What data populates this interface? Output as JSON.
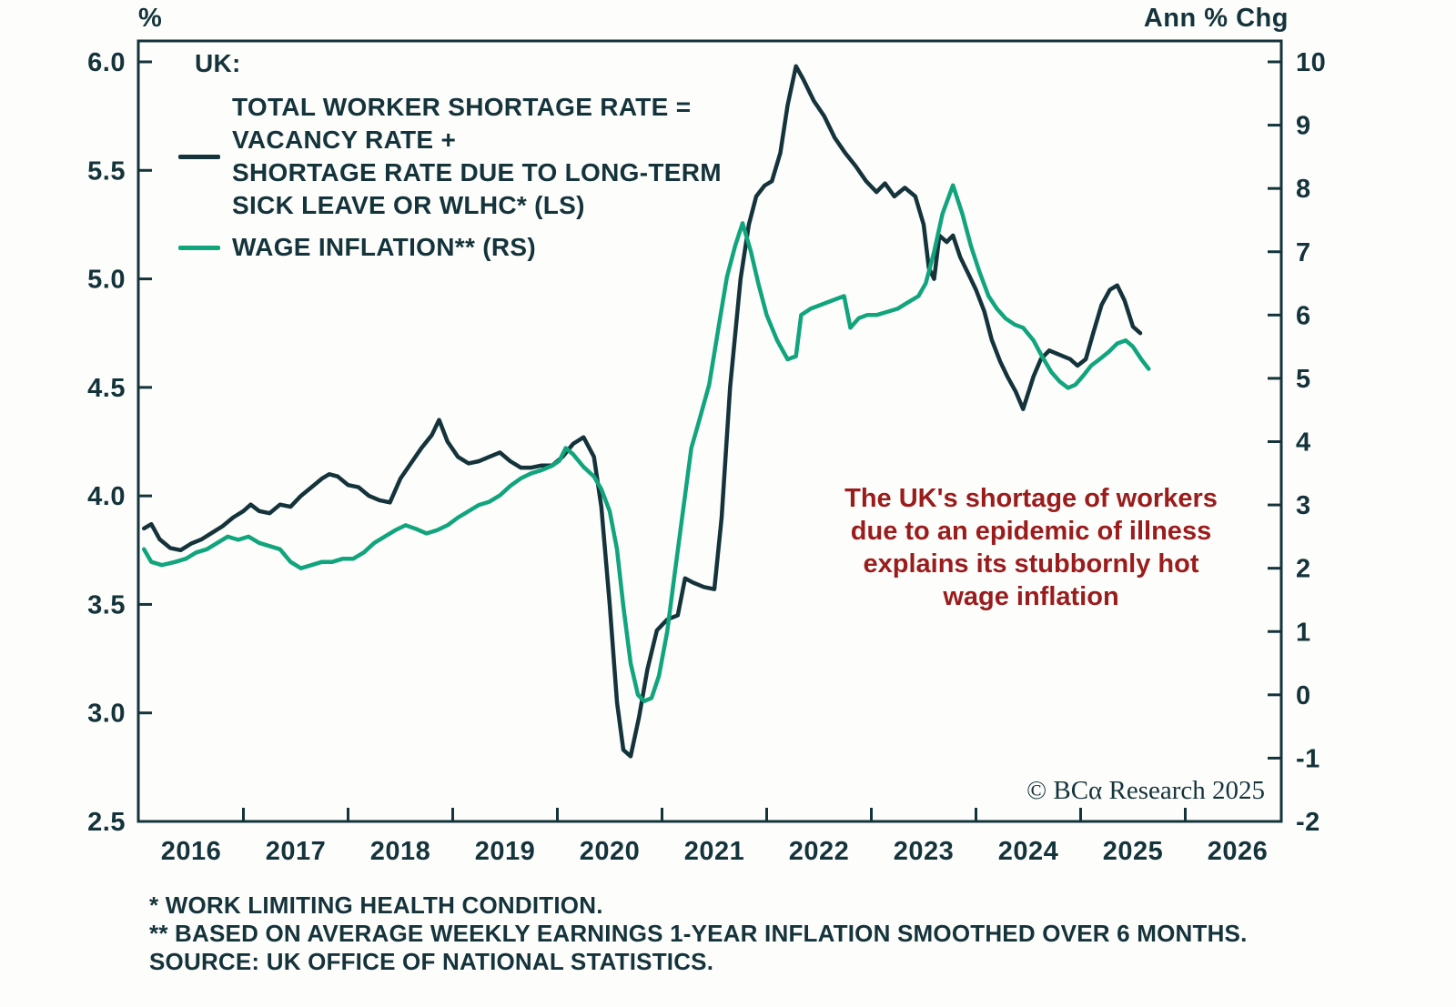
{
  "colors": {
    "navy": "#14333b",
    "green": "#11a57d",
    "red": "#9a1c1c",
    "background": "#fdfdfb"
  },
  "axes": {
    "left_unit": "%",
    "right_unit": "Ann % Chg"
  },
  "legend": {
    "heading": "UK:",
    "items": [
      {
        "id": "shortage",
        "color": "#14333b",
        "lines": [
          "TOTAL WORKER SHORTAGE RATE =",
          "VACANCY RATE +",
          "SHORTAGE RATE DUE TO LONG-TERM",
          "SICK LEAVE OR WLHC* (LS)"
        ]
      },
      {
        "id": "wage-inflation",
        "color": "#11a57d",
        "lines": [
          "WAGE INFLATION** (RS)"
        ]
      }
    ]
  },
  "annotation": {
    "lines": [
      "The UK's shortage of workers",
      "due to an epidemic of illness",
      "explains its stubbornly hot",
      "wage inflation"
    ]
  },
  "copyright": "© BCα Research 2025",
  "footnotes": [
    "* WORK LIMITING HEALTH CONDITION.",
    "** BASED ON AVERAGE WEEKLY EARNINGS 1-YEAR INFLATION SMOOTHED OVER 6 MONTHS.",
    "SOURCE: UK OFFICE OF NATIONAL STATISTICS."
  ],
  "chart_data": {
    "type": "line",
    "title": "",
    "xlim": [
      2015.5,
      2026.42
    ],
    "x_year_labels": [
      2016,
      2017,
      2018,
      2019,
      2020,
      2021,
      2022,
      2023,
      2024,
      2025,
      2026
    ],
    "x_boundary_ticks": [
      2016.5,
      2017.5,
      2018.5,
      2019.5,
      2020.5,
      2021.5,
      2022.5,
      2023.5,
      2024.5,
      2025.5
    ],
    "left_axis": {
      "label": "%",
      "range": [
        2.5,
        6.0
      ],
      "ticks": [
        6.0,
        5.5,
        5.0,
        4.5,
        4.0,
        3.5,
        3.0,
        2.5
      ]
    },
    "right_axis": {
      "label": "Ann % Chg",
      "range": [
        -2,
        10
      ],
      "ticks": [
        10,
        9,
        8,
        7,
        6,
        5,
        4,
        3,
        2,
        1,
        0,
        -1,
        -2
      ]
    },
    "grid": false,
    "legend_position": "top-left",
    "series": [
      {
        "id": "total-worker-shortage-rate",
        "name": "TOTAL WORKER SHORTAGE RATE = VACANCY RATE + SHORTAGE RATE DUE TO LONG-TERM SICK LEAVE OR WLHC (LS)",
        "axis": "left",
        "color": "#14333b",
        "points": [
          [
            2015.55,
            3.85
          ],
          [
            2015.62,
            3.87
          ],
          [
            2015.7,
            3.8
          ],
          [
            2015.8,
            3.76
          ],
          [
            2015.9,
            3.75
          ],
          [
            2016.0,
            3.78
          ],
          [
            2016.1,
            3.8
          ],
          [
            2016.2,
            3.83
          ],
          [
            2016.3,
            3.86
          ],
          [
            2016.4,
            3.9
          ],
          [
            2016.5,
            3.93
          ],
          [
            2016.57,
            3.96
          ],
          [
            2016.65,
            3.93
          ],
          [
            2016.75,
            3.92
          ],
          [
            2016.85,
            3.96
          ],
          [
            2016.95,
            3.95
          ],
          [
            2017.05,
            4.0
          ],
          [
            2017.15,
            4.04
          ],
          [
            2017.25,
            4.08
          ],
          [
            2017.32,
            4.1
          ],
          [
            2017.4,
            4.09
          ],
          [
            2017.5,
            4.05
          ],
          [
            2017.6,
            4.04
          ],
          [
            2017.7,
            4.0
          ],
          [
            2017.8,
            3.98
          ],
          [
            2017.9,
            3.97
          ],
          [
            2018.0,
            4.08
          ],
          [
            2018.1,
            4.15
          ],
          [
            2018.2,
            4.22
          ],
          [
            2018.3,
            4.28
          ],
          [
            2018.37,
            4.35
          ],
          [
            2018.45,
            4.25
          ],
          [
            2018.55,
            4.18
          ],
          [
            2018.65,
            4.15
          ],
          [
            2018.75,
            4.16
          ],
          [
            2018.85,
            4.18
          ],
          [
            2018.95,
            4.2
          ],
          [
            2019.05,
            4.16
          ],
          [
            2019.15,
            4.13
          ],
          [
            2019.25,
            4.13
          ],
          [
            2019.35,
            4.14
          ],
          [
            2019.45,
            4.14
          ],
          [
            2019.55,
            4.18
          ],
          [
            2019.65,
            4.24
          ],
          [
            2019.75,
            4.27
          ],
          [
            2019.85,
            4.18
          ],
          [
            2019.92,
            3.95
          ],
          [
            2020.0,
            3.5
          ],
          [
            2020.07,
            3.05
          ],
          [
            2020.13,
            2.83
          ],
          [
            2020.2,
            2.8
          ],
          [
            2020.28,
            2.98
          ],
          [
            2020.36,
            3.2
          ],
          [
            2020.45,
            3.38
          ],
          [
            2020.55,
            3.43
          ],
          [
            2020.65,
            3.45
          ],
          [
            2020.72,
            3.62
          ],
          [
            2020.8,
            3.6
          ],
          [
            2020.9,
            3.58
          ],
          [
            2021.0,
            3.57
          ],
          [
            2021.07,
            3.9
          ],
          [
            2021.15,
            4.5
          ],
          [
            2021.25,
            5.0
          ],
          [
            2021.33,
            5.25
          ],
          [
            2021.4,
            5.38
          ],
          [
            2021.48,
            5.43
          ],
          [
            2021.55,
            5.45
          ],
          [
            2021.63,
            5.58
          ],
          [
            2021.7,
            5.8
          ],
          [
            2021.78,
            5.98
          ],
          [
            2021.85,
            5.92
          ],
          [
            2021.95,
            5.82
          ],
          [
            2022.05,
            5.75
          ],
          [
            2022.15,
            5.65
          ],
          [
            2022.25,
            5.58
          ],
          [
            2022.35,
            5.52
          ],
          [
            2022.45,
            5.45
          ],
          [
            2022.55,
            5.4
          ],
          [
            2022.63,
            5.44
          ],
          [
            2022.72,
            5.38
          ],
          [
            2022.82,
            5.42
          ],
          [
            2022.92,
            5.38
          ],
          [
            2023.0,
            5.25
          ],
          [
            2023.05,
            5.05
          ],
          [
            2023.1,
            5.0
          ],
          [
            2023.15,
            5.2
          ],
          [
            2023.22,
            5.17
          ],
          [
            2023.28,
            5.2
          ],
          [
            2023.35,
            5.1
          ],
          [
            2023.43,
            5.02
          ],
          [
            2023.5,
            4.95
          ],
          [
            2023.58,
            4.85
          ],
          [
            2023.65,
            4.72
          ],
          [
            2023.73,
            4.62
          ],
          [
            2023.8,
            4.55
          ],
          [
            2023.88,
            4.48
          ],
          [
            2023.95,
            4.4
          ],
          [
            2024.05,
            4.55
          ],
          [
            2024.12,
            4.63
          ],
          [
            2024.2,
            4.67
          ],
          [
            2024.3,
            4.65
          ],
          [
            2024.4,
            4.63
          ],
          [
            2024.47,
            4.6
          ],
          [
            2024.55,
            4.63
          ],
          [
            2024.62,
            4.75
          ],
          [
            2024.7,
            4.88
          ],
          [
            2024.78,
            4.95
          ],
          [
            2024.85,
            4.97
          ],
          [
            2024.92,
            4.9
          ],
          [
            2025.0,
            4.78
          ],
          [
            2025.07,
            4.75
          ]
        ]
      },
      {
        "id": "wage-inflation",
        "name": "WAGE INFLATION (RS)",
        "axis": "right",
        "color": "#11a57d",
        "points": [
          [
            2015.55,
            2.3
          ],
          [
            2015.62,
            2.1
          ],
          [
            2015.72,
            2.05
          ],
          [
            2015.85,
            2.1
          ],
          [
            2015.95,
            2.15
          ],
          [
            2016.05,
            2.25
          ],
          [
            2016.15,
            2.3
          ],
          [
            2016.25,
            2.4
          ],
          [
            2016.35,
            2.5
          ],
          [
            2016.45,
            2.45
          ],
          [
            2016.55,
            2.5
          ],
          [
            2016.65,
            2.4
          ],
          [
            2016.75,
            2.35
          ],
          [
            2016.85,
            2.3
          ],
          [
            2016.95,
            2.1
          ],
          [
            2017.05,
            2.0
          ],
          [
            2017.15,
            2.05
          ],
          [
            2017.25,
            2.1
          ],
          [
            2017.35,
            2.1
          ],
          [
            2017.45,
            2.15
          ],
          [
            2017.55,
            2.15
          ],
          [
            2017.65,
            2.25
          ],
          [
            2017.75,
            2.4
          ],
          [
            2017.85,
            2.5
          ],
          [
            2017.95,
            2.6
          ],
          [
            2018.05,
            2.68
          ],
          [
            2018.15,
            2.62
          ],
          [
            2018.25,
            2.55
          ],
          [
            2018.35,
            2.6
          ],
          [
            2018.45,
            2.68
          ],
          [
            2018.55,
            2.8
          ],
          [
            2018.65,
            2.9
          ],
          [
            2018.75,
            3.0
          ],
          [
            2018.85,
            3.05
          ],
          [
            2018.95,
            3.15
          ],
          [
            2019.05,
            3.3
          ],
          [
            2019.15,
            3.42
          ],
          [
            2019.25,
            3.5
          ],
          [
            2019.35,
            3.55
          ],
          [
            2019.45,
            3.62
          ],
          [
            2019.52,
            3.7
          ],
          [
            2019.58,
            3.9
          ],
          [
            2019.65,
            3.8
          ],
          [
            2019.75,
            3.6
          ],
          [
            2019.85,
            3.45
          ],
          [
            2019.92,
            3.25
          ],
          [
            2020.0,
            2.9
          ],
          [
            2020.07,
            2.3
          ],
          [
            2020.13,
            1.4
          ],
          [
            2020.2,
            0.5
          ],
          [
            2020.27,
            0.0
          ],
          [
            2020.33,
            -0.1
          ],
          [
            2020.4,
            -0.05
          ],
          [
            2020.47,
            0.3
          ],
          [
            2020.55,
            1.0
          ],
          [
            2020.62,
            1.9
          ],
          [
            2020.7,
            2.9
          ],
          [
            2020.78,
            3.9
          ],
          [
            2020.85,
            4.3
          ],
          [
            2020.95,
            4.9
          ],
          [
            2021.05,
            5.9
          ],
          [
            2021.12,
            6.6
          ],
          [
            2021.2,
            7.1
          ],
          [
            2021.27,
            7.45
          ],
          [
            2021.35,
            7.0
          ],
          [
            2021.42,
            6.5
          ],
          [
            2021.5,
            6.0
          ],
          [
            2021.6,
            5.6
          ],
          [
            2021.7,
            5.3
          ],
          [
            2021.78,
            5.35
          ],
          [
            2021.83,
            6.0
          ],
          [
            2021.92,
            6.1
          ],
          [
            2022.0,
            6.15
          ],
          [
            2022.08,
            6.2
          ],
          [
            2022.16,
            6.25
          ],
          [
            2022.24,
            6.3
          ],
          [
            2022.3,
            5.8
          ],
          [
            2022.38,
            5.95
          ],
          [
            2022.46,
            6.0
          ],
          [
            2022.55,
            6.0
          ],
          [
            2022.65,
            6.05
          ],
          [
            2022.75,
            6.1
          ],
          [
            2022.85,
            6.2
          ],
          [
            2022.95,
            6.3
          ],
          [
            2023.02,
            6.5
          ],
          [
            2023.1,
            7.0
          ],
          [
            2023.18,
            7.6
          ],
          [
            2023.28,
            8.05
          ],
          [
            2023.37,
            7.6
          ],
          [
            2023.45,
            7.1
          ],
          [
            2023.53,
            6.7
          ],
          [
            2023.62,
            6.3
          ],
          [
            2023.7,
            6.1
          ],
          [
            2023.78,
            5.95
          ],
          [
            2023.87,
            5.85
          ],
          [
            2023.95,
            5.8
          ],
          [
            2024.05,
            5.6
          ],
          [
            2024.13,
            5.35
          ],
          [
            2024.22,
            5.1
          ],
          [
            2024.3,
            4.95
          ],
          [
            2024.38,
            4.85
          ],
          [
            2024.45,
            4.9
          ],
          [
            2024.53,
            5.05
          ],
          [
            2024.6,
            5.2
          ],
          [
            2024.68,
            5.3
          ],
          [
            2024.77,
            5.42
          ],
          [
            2024.85,
            5.55
          ],
          [
            2024.93,
            5.6
          ],
          [
            2025.0,
            5.5
          ],
          [
            2025.08,
            5.3
          ],
          [
            2025.15,
            5.15
          ]
        ]
      }
    ]
  }
}
